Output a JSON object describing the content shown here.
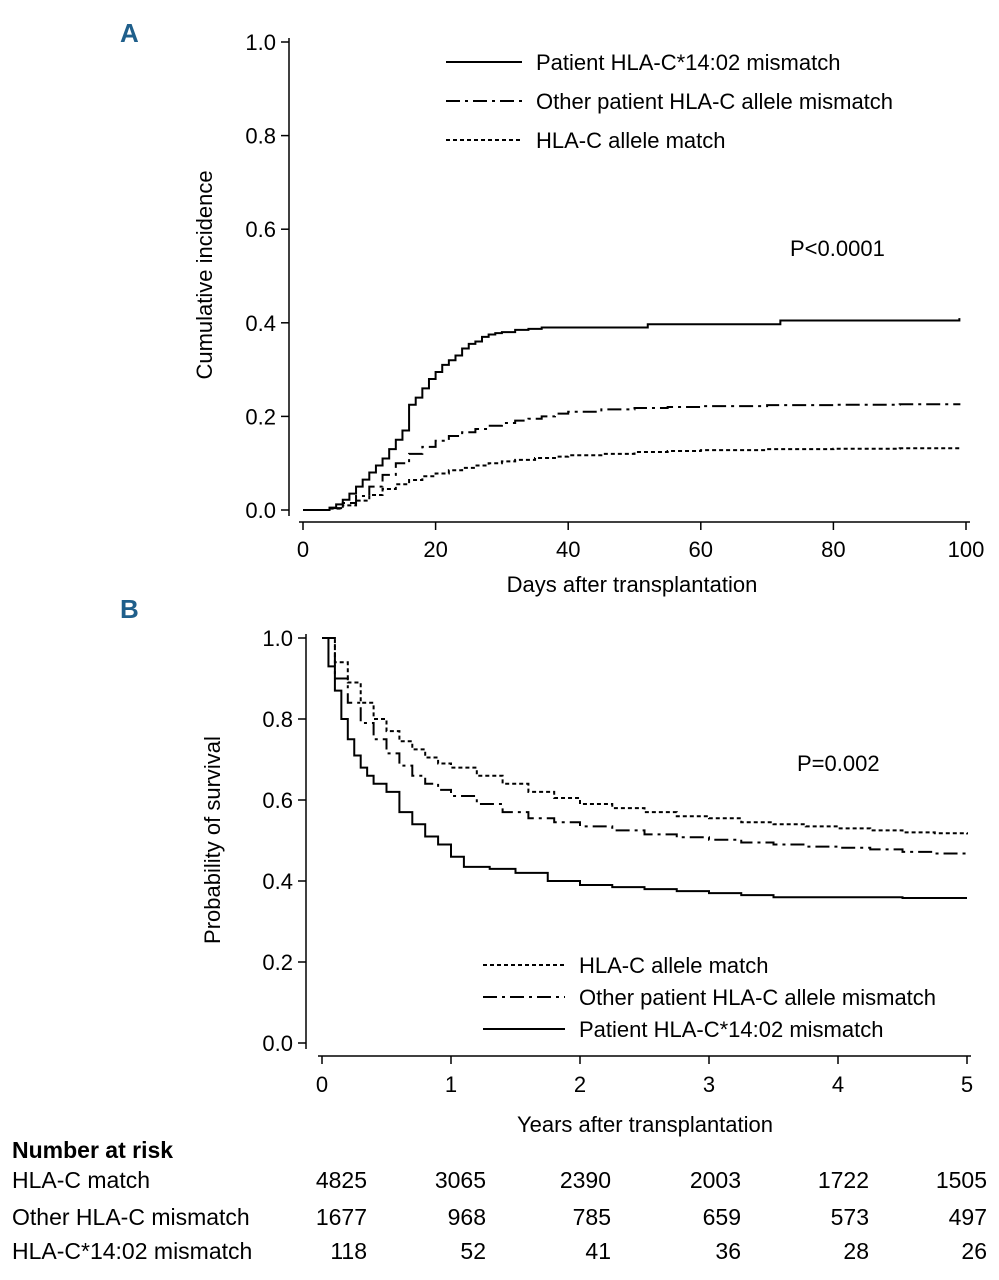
{
  "panels": {
    "a": {
      "label": "A",
      "y_ticks": [
        "0.0",
        "0.2",
        "0.4",
        "0.6",
        "0.8",
        "1.0"
      ],
      "x_ticks": [
        "0",
        "20",
        "40",
        "60",
        "80",
        "100"
      ],
      "p_value": "P<0.0001"
    },
    "b": {
      "label": "B",
      "y_ticks": [
        "0.0",
        "0.2",
        "0.4",
        "0.6",
        "0.8",
        "1.0"
      ],
      "x_ticks": [
        "0",
        "1",
        "2",
        "3",
        "4",
        "5"
      ],
      "p_value": "P=0.002"
    }
  },
  "chart_data": [
    {
      "type": "line",
      "title": "A",
      "xlabel": "Days after transplantation",
      "ylabel": "Cumulative incidence",
      "xlim": [
        0,
        100
      ],
      "ylim": [
        0,
        1
      ],
      "grid": false,
      "legend_position": "top-right",
      "annotation": "P<0.0001",
      "series": [
        {
          "name": "Patient HLA-C*14:02 mismatch",
          "style": "solid",
          "x": [
            0,
            4,
            5,
            6,
            7,
            8,
            9,
            10,
            11,
            12,
            13,
            14,
            15,
            16,
            17,
            18,
            19,
            20,
            21,
            22,
            23,
            24,
            25,
            26,
            27,
            28,
            29,
            30,
            32,
            34,
            36,
            40,
            52,
            60,
            72,
            80,
            99
          ],
          "y": [
            0,
            0.005,
            0.012,
            0.022,
            0.035,
            0.05,
            0.065,
            0.08,
            0.095,
            0.11,
            0.13,
            0.15,
            0.17,
            0.225,
            0.24,
            0.26,
            0.28,
            0.295,
            0.31,
            0.32,
            0.33,
            0.345,
            0.355,
            0.36,
            0.37,
            0.375,
            0.378,
            0.38,
            0.385,
            0.387,
            0.39,
            0.39,
            0.397,
            0.397,
            0.405,
            0.405,
            0.41
          ]
        },
        {
          "name": "Other patient HLA-C allele mismatch",
          "style": "dash-dot",
          "x": [
            0,
            4,
            6,
            8,
            10,
            12,
            14,
            16,
            18,
            20,
            22,
            24,
            26,
            28,
            30,
            32,
            34,
            36,
            38,
            40,
            45,
            50,
            55,
            60,
            70,
            80,
            90,
            99
          ],
          "y": [
            0,
            0.004,
            0.015,
            0.03,
            0.05,
            0.075,
            0.1,
            0.12,
            0.135,
            0.148,
            0.158,
            0.166,
            0.173,
            0.18,
            0.186,
            0.191,
            0.195,
            0.2,
            0.206,
            0.21,
            0.215,
            0.218,
            0.22,
            0.222,
            0.224,
            0.225,
            0.226,
            0.228
          ]
        },
        {
          "name": "HLA-C allele match",
          "style": "dotted",
          "x": [
            0,
            4,
            6,
            8,
            10,
            12,
            14,
            16,
            18,
            20,
            22,
            24,
            26,
            28,
            30,
            32,
            35,
            38,
            40,
            45,
            50,
            55,
            60,
            70,
            80,
            90,
            99
          ],
          "y": [
            0,
            0.003,
            0.01,
            0.02,
            0.032,
            0.045,
            0.055,
            0.064,
            0.072,
            0.078,
            0.085,
            0.09,
            0.095,
            0.1,
            0.104,
            0.107,
            0.111,
            0.114,
            0.117,
            0.12,
            0.124,
            0.126,
            0.128,
            0.13,
            0.131,
            0.132,
            0.133
          ]
        }
      ]
    },
    {
      "type": "line",
      "title": "B",
      "xlabel": "Years after transplantation",
      "ylabel": "Probability of survival",
      "xlim": [
        0,
        5
      ],
      "ylim": [
        0,
        1
      ],
      "grid": false,
      "legend_position": "bottom-right",
      "annotation": "P=0.002",
      "series": [
        {
          "name": "HLA-C allele match",
          "style": "dotted",
          "x": [
            0,
            0.1,
            0.2,
            0.3,
            0.4,
            0.5,
            0.6,
            0.7,
            0.8,
            0.9,
            1.0,
            1.2,
            1.4,
            1.6,
            1.8,
            2.0,
            2.25,
            2.5,
            2.75,
            3.0,
            3.25,
            3.5,
            3.75,
            4.0,
            4.25,
            4.5,
            4.75,
            5.0
          ],
          "y": [
            1.0,
            0.94,
            0.89,
            0.84,
            0.8,
            0.77,
            0.745,
            0.725,
            0.705,
            0.69,
            0.68,
            0.66,
            0.64,
            0.62,
            0.605,
            0.59,
            0.58,
            0.57,
            0.56,
            0.555,
            0.545,
            0.54,
            0.535,
            0.53,
            0.525,
            0.52,
            0.518,
            0.515
          ]
        },
        {
          "name": "Other patient HLA-C allele mismatch",
          "style": "dash-dot",
          "x": [
            0,
            0.1,
            0.2,
            0.3,
            0.4,
            0.5,
            0.6,
            0.7,
            0.8,
            0.9,
            1.0,
            1.2,
            1.4,
            1.6,
            1.8,
            2.0,
            2.25,
            2.5,
            2.75,
            3.0,
            3.25,
            3.5,
            3.75,
            4.0,
            4.25,
            4.5,
            4.75,
            5.0
          ],
          "y": [
            1.0,
            0.9,
            0.84,
            0.79,
            0.75,
            0.715,
            0.685,
            0.66,
            0.64,
            0.625,
            0.61,
            0.59,
            0.57,
            0.555,
            0.545,
            0.535,
            0.525,
            0.515,
            0.508,
            0.502,
            0.495,
            0.49,
            0.485,
            0.482,
            0.478,
            0.472,
            0.468,
            0.462
          ]
        },
        {
          "name": "Patient HLA-C*14:02 mismatch",
          "style": "solid",
          "x": [
            0,
            0.05,
            0.1,
            0.15,
            0.2,
            0.25,
            0.3,
            0.35,
            0.4,
            0.5,
            0.6,
            0.7,
            0.8,
            0.9,
            1.0,
            1.1,
            1.3,
            1.5,
            1.75,
            2.0,
            2.25,
            2.5,
            2.75,
            3.0,
            3.25,
            3.5,
            4.0,
            4.5,
            5.0
          ],
          "y": [
            1.0,
            0.93,
            0.87,
            0.8,
            0.75,
            0.71,
            0.68,
            0.66,
            0.64,
            0.62,
            0.57,
            0.54,
            0.51,
            0.49,
            0.46,
            0.435,
            0.43,
            0.42,
            0.4,
            0.39,
            0.385,
            0.38,
            0.375,
            0.37,
            0.365,
            0.36,
            0.36,
            0.358,
            0.358
          ]
        }
      ]
    }
  ],
  "risk_table": {
    "title": "Number at risk",
    "rows": [
      {
        "label": "HLA-C match",
        "values": [
          "4825",
          "3065",
          "2390",
          "2003",
          "1722",
          "1505"
        ]
      },
      {
        "label": "Other HLA-C mismatch",
        "values": [
          "1677",
          "968",
          "785",
          "659",
          "573",
          "497"
        ]
      },
      {
        "label": "HLA-C*14:02 mismatch",
        "values": [
          "118",
          "52",
          "41",
          "36",
          "28",
          "26"
        ]
      }
    ]
  }
}
